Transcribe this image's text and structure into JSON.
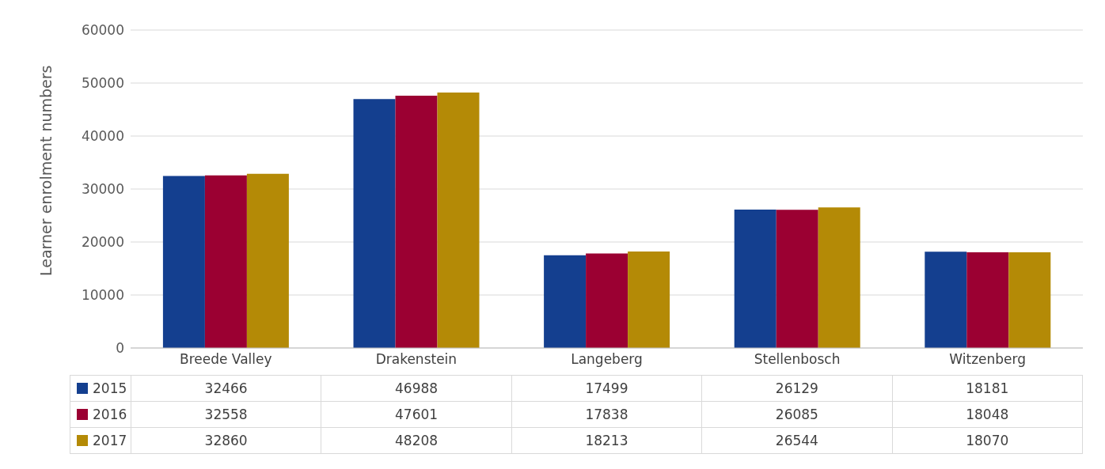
{
  "chart_data": {
    "type": "bar",
    "ylabel": "Learner enrolment numbers",
    "categories": [
      "Breede Valley",
      "Drakenstein",
      "Langeberg",
      "Stellenbosch",
      "Witzenberg"
    ],
    "series": [
      {
        "name": "2015",
        "color": "#143f8f",
        "values": [
          32466,
          46988,
          17499,
          26129,
          18181
        ]
      },
      {
        "name": "2016",
        "color": "#9b0032",
        "values": [
          32558,
          47601,
          17838,
          26085,
          18048
        ]
      },
      {
        "name": "2017",
        "color": "#b48a06",
        "values": [
          32860,
          48208,
          18213,
          26544,
          18070
        ]
      }
    ],
    "ylim": [
      0,
      60000
    ],
    "yticks": [
      0,
      10000,
      20000,
      30000,
      40000,
      50000,
      60000
    ],
    "grid": "y",
    "legend": "bottom left",
    "data_labels": true
  }
}
